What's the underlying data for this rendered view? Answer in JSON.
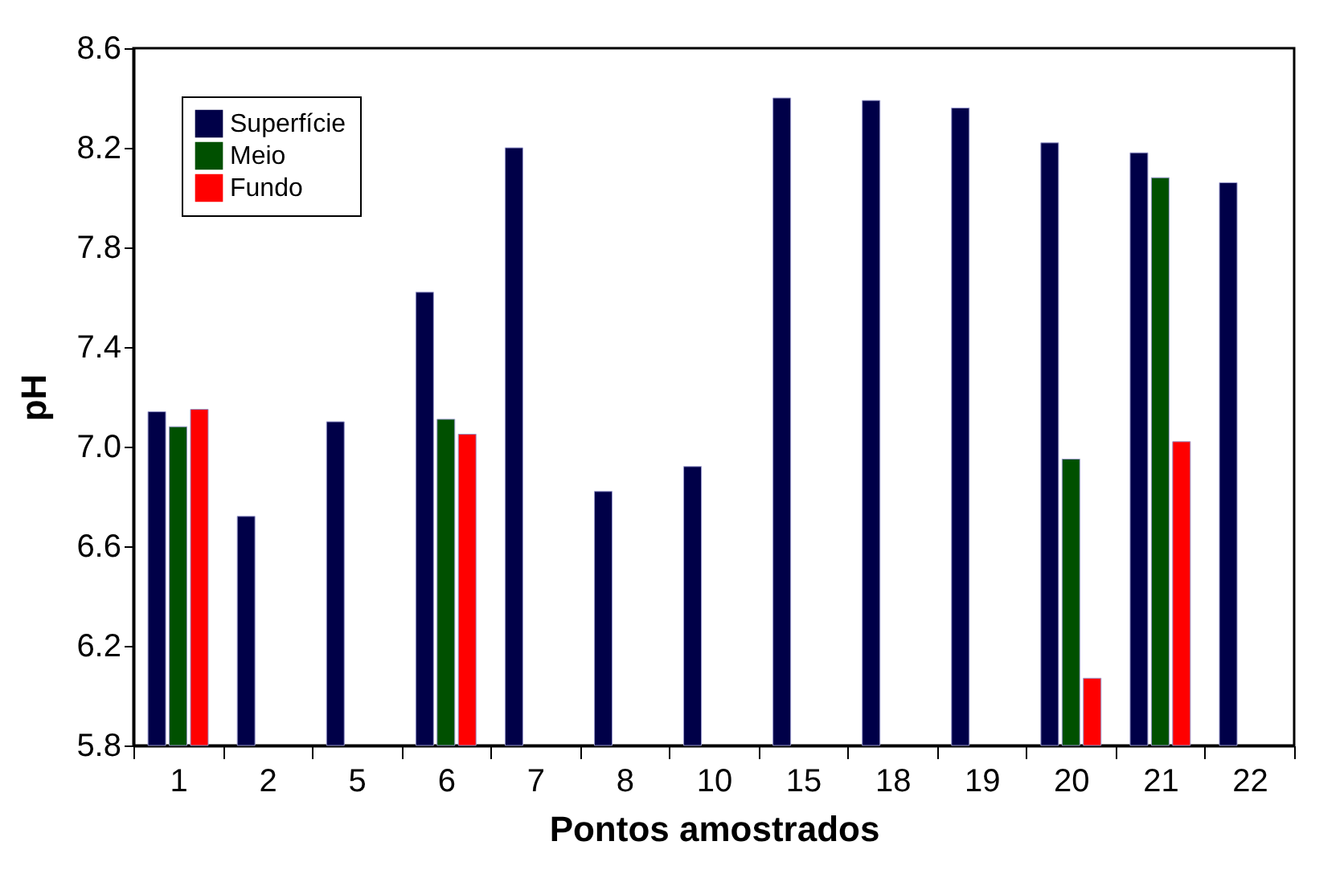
{
  "chart_data": {
    "type": "bar",
    "xlabel": "Pontos amostrados",
    "ylabel": "pH",
    "categories": [
      "1",
      "2",
      "5",
      "6",
      "7",
      "8",
      "10",
      "15",
      "18",
      "19",
      "20",
      "21",
      "22"
    ],
    "series": [
      {
        "name": "Superfície",
        "color": "#000048",
        "values": [
          7.14,
          6.72,
          7.1,
          7.62,
          8.2,
          6.82,
          6.92,
          8.4,
          8.39,
          8.36,
          8.22,
          8.18,
          8.06
        ]
      },
      {
        "name": "Meio",
        "color": "#005000",
        "values": [
          7.08,
          null,
          null,
          7.11,
          null,
          null,
          null,
          null,
          null,
          null,
          6.95,
          8.08,
          null
        ]
      },
      {
        "name": "Fundo",
        "color": "#ff0000",
        "values": [
          7.15,
          null,
          null,
          7.05,
          null,
          null,
          null,
          null,
          null,
          null,
          6.07,
          7.02,
          null
        ]
      }
    ],
    "ylim": [
      5.8,
      8.6
    ],
    "yticks": [
      5.8,
      6.2,
      6.6,
      {
        "value": 7,
        "label": "7.0"
      },
      7.4,
      7.8,
      8.2,
      8.6
    ],
    "grid": false,
    "legend": "top left"
  }
}
